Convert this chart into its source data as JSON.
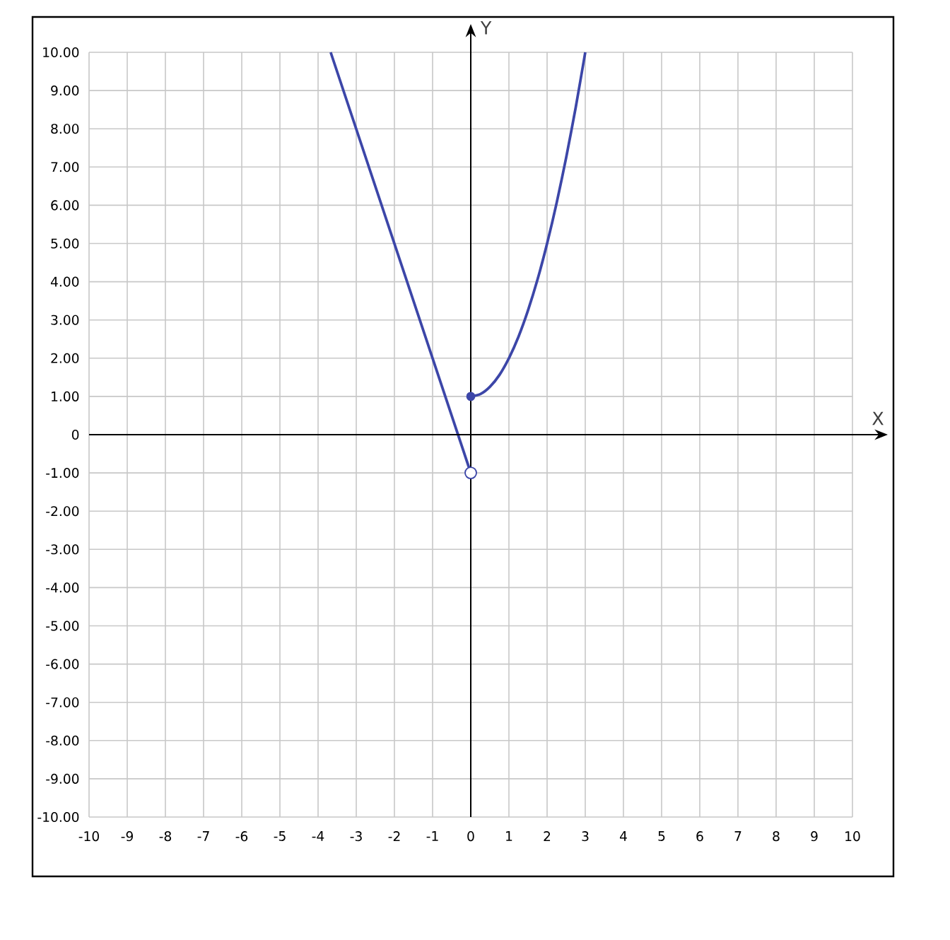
{
  "chart_data": {
    "type": "line",
    "xlabel": "X",
    "ylabel": "Y",
    "xlim": [
      -10,
      10
    ],
    "ylim": [
      -10,
      10
    ],
    "xticks": [
      -10,
      -9,
      -8,
      -7,
      -6,
      -5,
      -4,
      -3,
      -2,
      -1,
      0,
      1,
      2,
      3,
      4,
      5,
      6,
      7,
      8,
      9,
      10
    ],
    "yticks": [
      {
        "value": -10,
        "label": "-10.00"
      },
      {
        "value": -9,
        "label": "-9.00"
      },
      {
        "value": -8,
        "label": "-8.00"
      },
      {
        "value": -7,
        "label": "-7.00"
      },
      {
        "value": -6,
        "label": "-6.00"
      },
      {
        "value": -5,
        "label": "-5.00"
      },
      {
        "value": -4,
        "label": "-4.00"
      },
      {
        "value": -3,
        "label": "-3.00"
      },
      {
        "value": -2,
        "label": "-2.00"
      },
      {
        "value": -1,
        "label": "-1.00"
      },
      0,
      {
        "value": 1,
        "label": "1.00"
      },
      {
        "value": 2,
        "label": "2.00"
      },
      {
        "value": 3,
        "label": "3.00"
      },
      {
        "value": 4,
        "label": "4.00"
      },
      {
        "value": 5,
        "label": "5.00"
      },
      {
        "value": 6,
        "label": "6.00"
      },
      {
        "value": 7,
        "label": "7.00"
      },
      {
        "value": 8,
        "label": "8.00"
      },
      {
        "value": 9,
        "label": "9.00"
      },
      {
        "value": 10,
        "label": "10.00"
      }
    ],
    "grid": true,
    "series": [
      {
        "color": "#3c46a8",
        "x": [
          -3.67,
          0
        ],
        "values": [
          10,
          -1
        ]
      },
      {
        "color": "#3c46a8",
        "x": [
          0,
          0.25,
          0.5,
          0.75,
          1,
          1.25,
          1.5,
          1.75,
          2,
          2.25,
          2.5,
          2.75,
          3
        ],
        "values": [
          1,
          1.06,
          1.25,
          1.56,
          2,
          2.56,
          3.25,
          4.06,
          5,
          6.06,
          7.25,
          8.56,
          10
        ]
      },
      {
        "type": "scatter",
        "color": "#3c46a8",
        "marker": "circle",
        "x": [
          0
        ],
        "values": [
          1
        ]
      },
      {
        "type": "scatter",
        "color": "#3c46a8",
        "x": [
          0
        ],
        "values": [
          -1
        ]
      }
    ]
  }
}
